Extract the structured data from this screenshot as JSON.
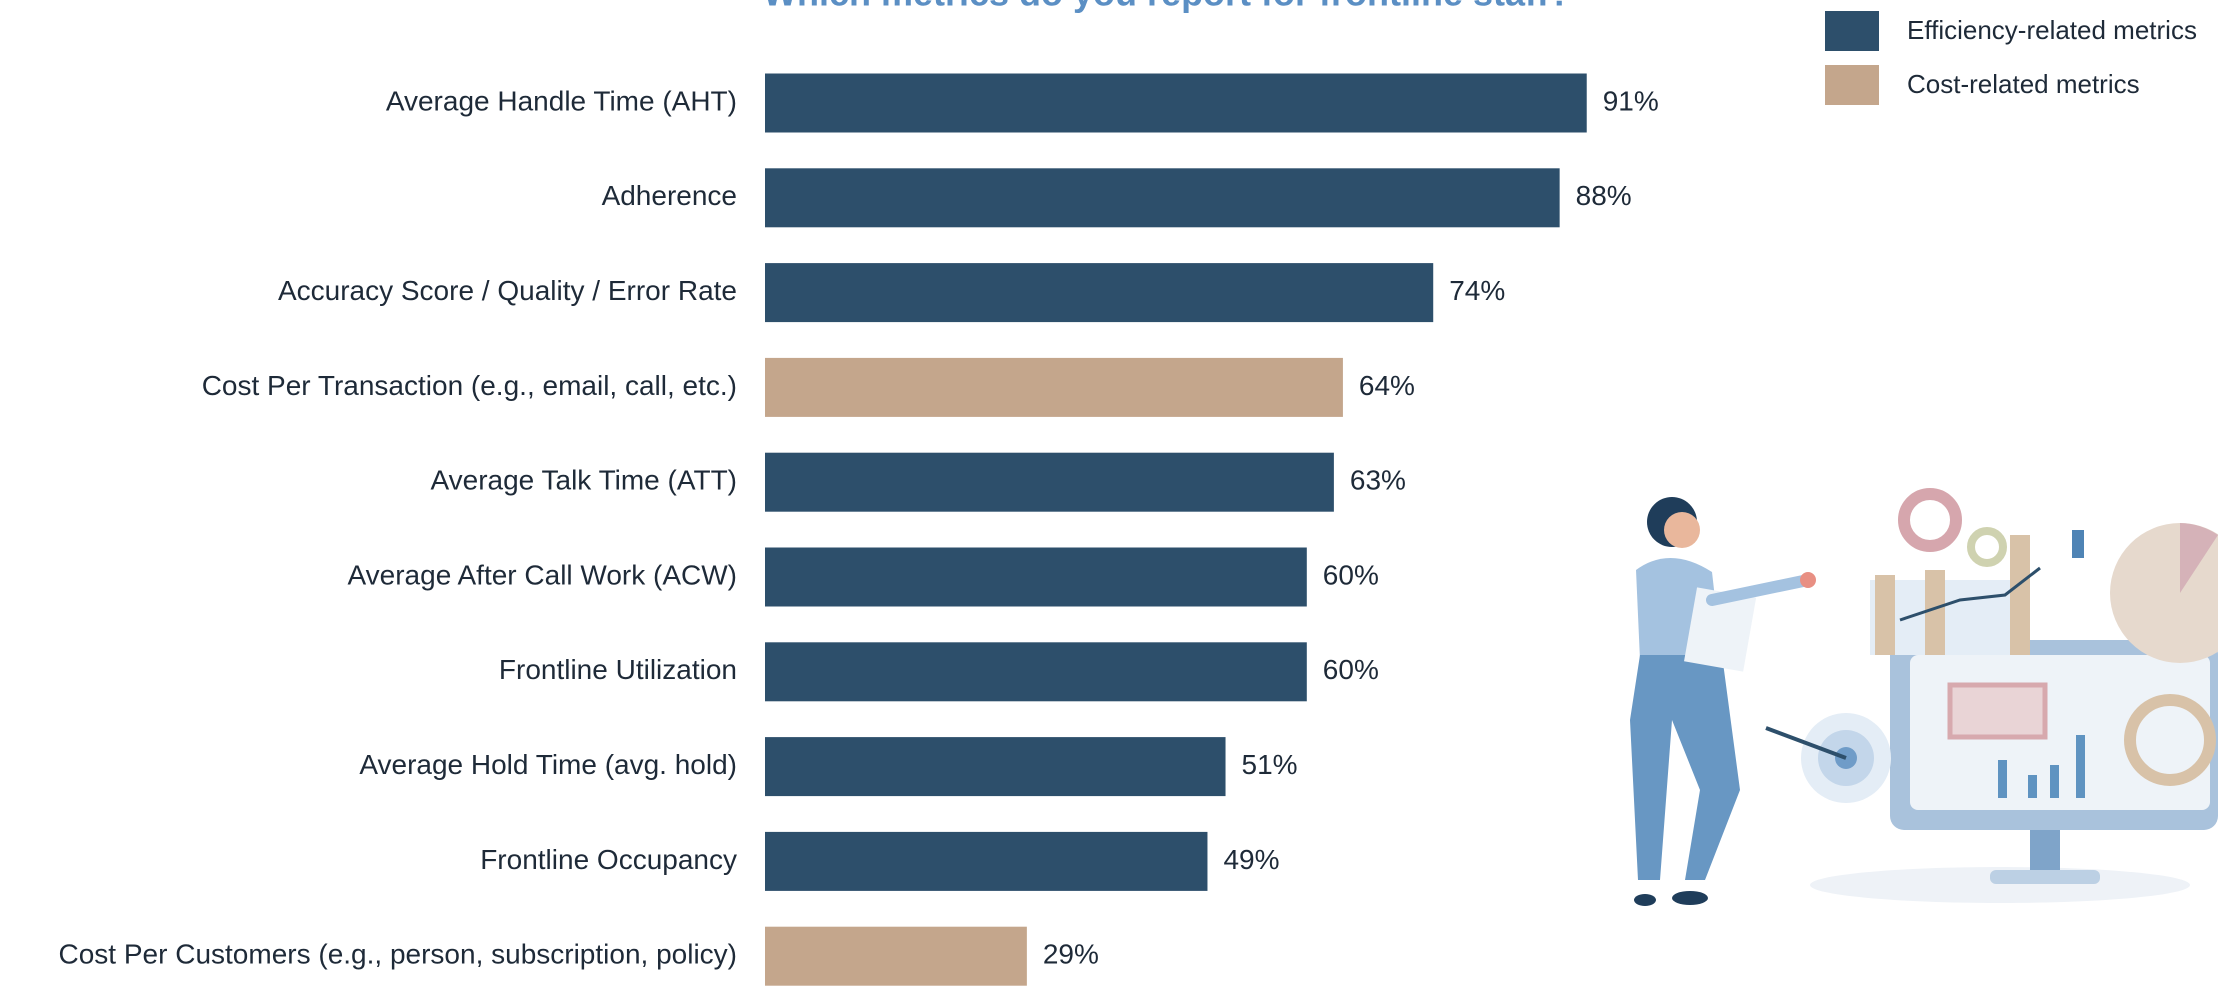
{
  "chart_data": {
    "type": "bar",
    "orientation": "horizontal",
    "title": "Which metrics do you report for frontline staff?",
    "categories": [
      "Average Handle Time (AHT)",
      "Adherence",
      "Accuracy Score / Quality / Error Rate",
      "Cost Per Transaction (e.g., email, call, etc.)",
      "Average Talk Time (ATT)",
      "Average After Call Work (ACW)",
      "Frontline Utilization",
      "Average Hold Time (avg. hold)",
      "Frontline Occupancy",
      "Cost Per Customers (e.g., person, subscription, policy)"
    ],
    "series": [
      {
        "name": "Efficiency-related metrics",
        "color": "#2d4f6b",
        "values": [
          91,
          88,
          74,
          null,
          63,
          60,
          60,
          51,
          49,
          null
        ],
        "value_labels": [
          "91%",
          "88%",
          "74%",
          null,
          "63%",
          "60%",
          "60%",
          "51%",
          "49%",
          null
        ]
      },
      {
        "name": "Cost-related metrics",
        "color": "#c4a68c",
        "values": [
          null,
          null,
          null,
          64,
          null,
          null,
          null,
          null,
          null,
          29
        ],
        "value_labels": [
          null,
          null,
          null,
          "64%",
          null,
          null,
          null,
          null,
          null,
          "29%"
        ]
      }
    ],
    "xlim": [
      0,
      100
    ],
    "legend": "top-right"
  }
}
